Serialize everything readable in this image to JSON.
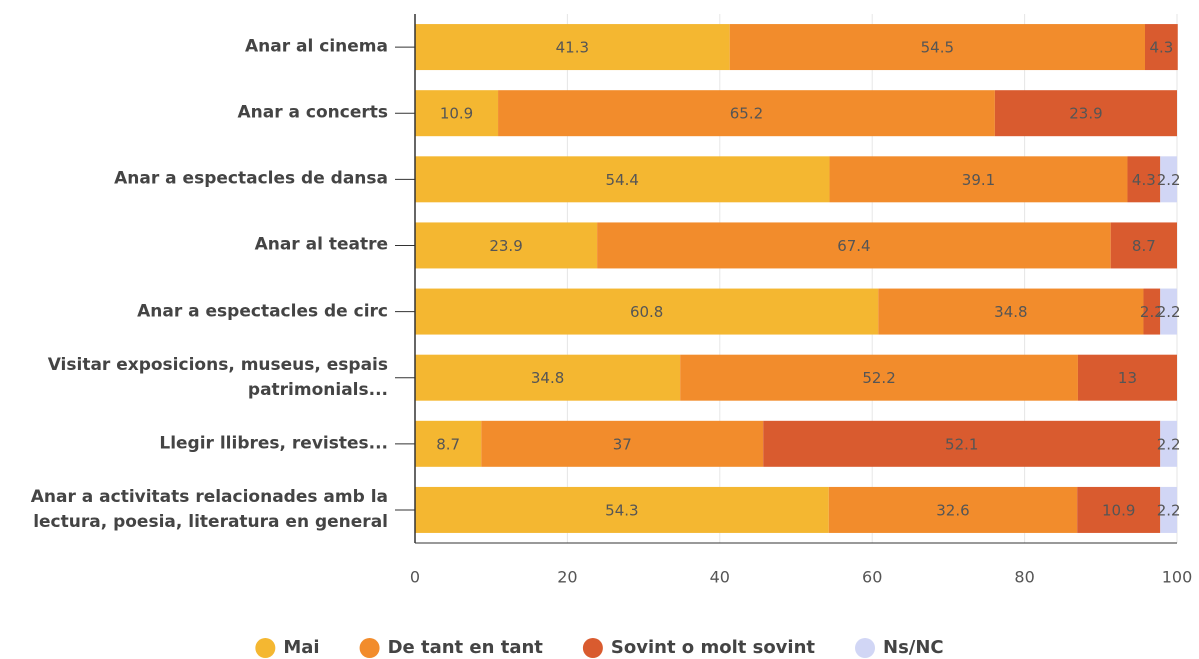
{
  "chart_data": {
    "type": "stacked-bar-horizontal",
    "categories": [
      "Anar al cinema",
      "Anar a concerts",
      "Anar a espectacles de dansa",
      "Anar al teatre",
      "Anar a espectacles de circ",
      "Visitar exposicions, museus, espais patrimonials...",
      "Llegir llibres, revistes...",
      "Anar a activitats relacionades amb la lectura, poesia, literatura en general"
    ],
    "series": [
      {
        "name": "Mai",
        "color": "#f4b731",
        "values": [
          41.3,
          10.9,
          54.4,
          23.9,
          60.8,
          34.8,
          8.7,
          54.3
        ]
      },
      {
        "name": "De tant en tant",
        "color": "#f28c2c",
        "values": [
          54.5,
          65.2,
          39.1,
          67.4,
          34.8,
          52.2,
          37,
          32.6
        ]
      },
      {
        "name": "Sovint o molt sovint",
        "color": "#d95b2f",
        "values": [
          4.3,
          23.9,
          4.3,
          8.7,
          2.2,
          13,
          52.1,
          10.9
        ]
      },
      {
        "name": "Ns/NC",
        "color": "#d1d6f5",
        "values": [
          null,
          null,
          2.2,
          null,
          2.2,
          null,
          2.2,
          2.2
        ]
      }
    ],
    "xlim": [
      0,
      100
    ],
    "xticks": [
      0,
      20,
      40,
      60,
      80,
      100
    ],
    "grid": true,
    "legend": "bottom"
  }
}
